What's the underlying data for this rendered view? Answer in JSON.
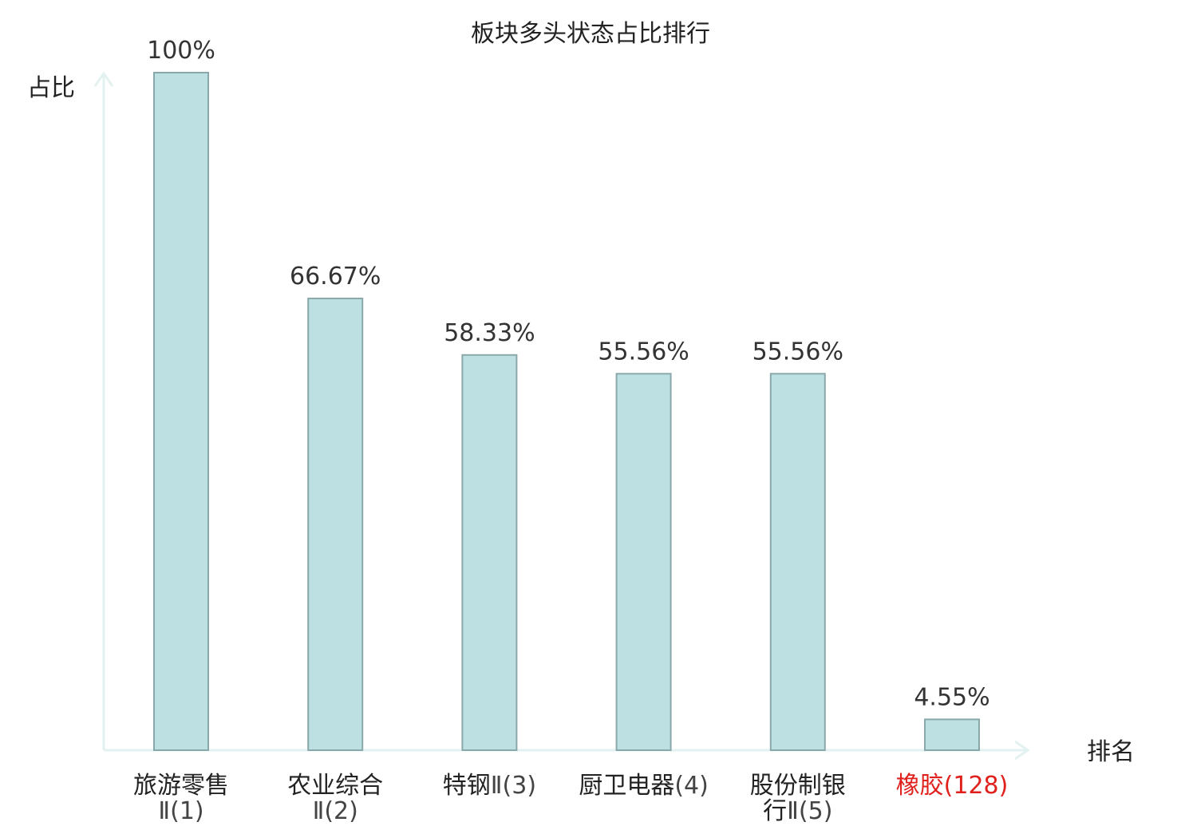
{
  "chart_data": {
    "type": "bar",
    "title": "板块多头状态占比排行",
    "ylabel": "占比",
    "xlabel": "排名",
    "ylim": [
      0,
      100
    ],
    "grid": false,
    "categories": [
      {
        "lines": [
          "旅游零售",
          "Ⅱ(1)"
        ],
        "highlight": false
      },
      {
        "lines": [
          "农业综合",
          "Ⅱ(2)"
        ],
        "highlight": false
      },
      {
        "lines": [
          "特钢Ⅱ(3)"
        ],
        "highlight": false
      },
      {
        "lines": [
          "厨卫电器(4)"
        ],
        "highlight": false
      },
      {
        "lines": [
          "股份制银",
          "行Ⅱ(5)"
        ],
        "highlight": false
      },
      {
        "lines": [
          "橡胶(128)"
        ],
        "highlight": true
      }
    ],
    "values": [
      100,
      66.67,
      58.33,
      55.56,
      55.56,
      4.55
    ],
    "value_labels": [
      "100%",
      "66.67%",
      "58.33%",
      "55.56%",
      "55.56%",
      "4.55%"
    ],
    "colors": {
      "bar_fill": "#bde0e3",
      "bar_stroke": "#8aa8aa",
      "axis": "#e3f2f0",
      "highlight_text": "#e0201c"
    }
  }
}
